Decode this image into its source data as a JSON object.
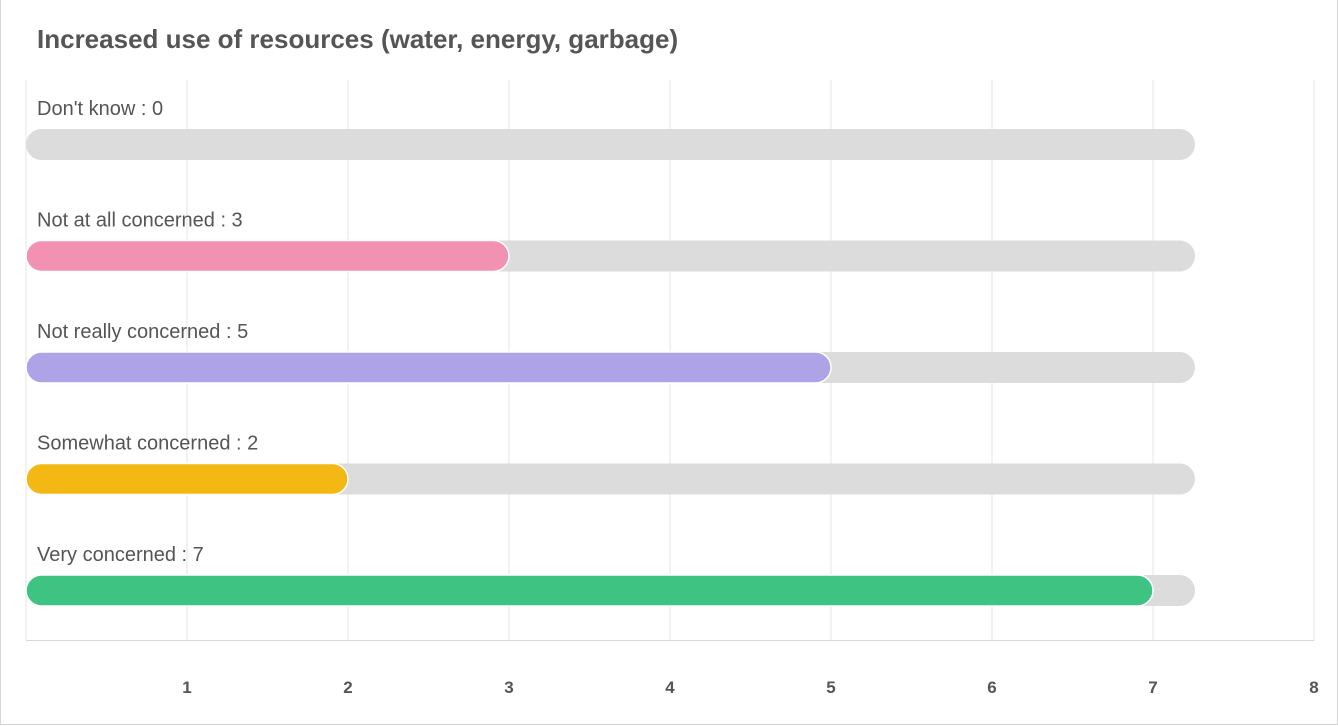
{
  "chart_data": {
    "type": "bar",
    "orientation": "horizontal",
    "title": "Increased use of resources (water, energy, garbage)",
    "categories": [
      "Don't know",
      "Not at all concerned",
      "Not really concerned",
      "Somewhat concerned",
      "Very concerned"
    ],
    "values": [
      0,
      3,
      5,
      2,
      7
    ],
    "labels": [
      "Don't know : 0",
      "Not at all concerned : 3",
      "Not really concerned : 5",
      "Somewhat concerned : 2",
      "Very concerned : 7"
    ],
    "colors": [
      "#cccccc",
      "#f391b2",
      "#ada3e6",
      "#f3b814",
      "#3fc383"
    ],
    "track_color": "#dcdcdc",
    "xlim": [
      0,
      8
    ],
    "xticks": [
      1,
      2,
      3,
      4,
      5,
      6,
      7,
      8
    ],
    "xtick_labels": [
      "1",
      "2",
      "3",
      "4",
      "5",
      "6",
      "7",
      "8"
    ],
    "grid": true,
    "xlabel": "",
    "ylabel": ""
  }
}
